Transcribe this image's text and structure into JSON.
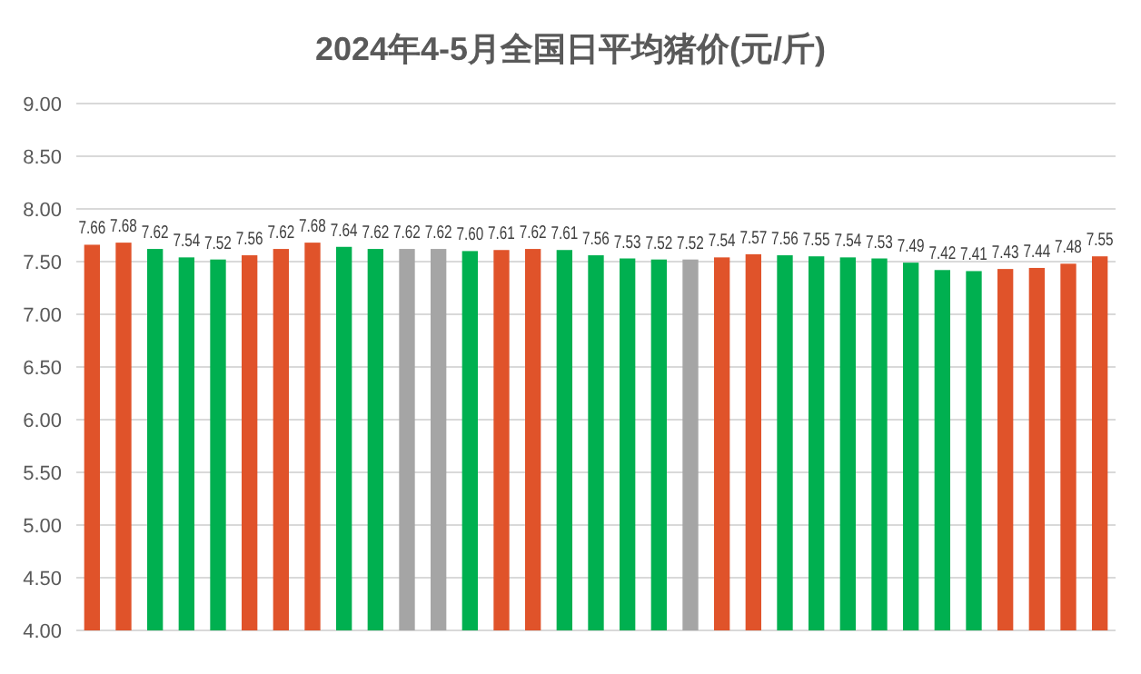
{
  "chart_data": {
    "type": "bar",
    "title": "2024年4-5月全国日平均猪价(元/斤)",
    "categories": [
      null,
      null,
      null,
      null,
      null,
      null,
      null,
      null,
      null,
      null,
      null,
      null,
      null,
      null,
      null,
      null,
      null,
      null,
      null,
      null,
      null,
      null,
      null,
      null,
      null,
      null,
      null,
      null,
      null,
      null,
      null,
      null,
      null
    ],
    "values": [
      7.66,
      7.68,
      7.62,
      7.54,
      7.52,
      7.56,
      7.62,
      7.68,
      7.64,
      7.62,
      7.62,
      7.62,
      7.6,
      7.61,
      7.62,
      7.61,
      7.56,
      7.53,
      7.52,
      7.52,
      7.54,
      7.57,
      7.56,
      7.55,
      7.54,
      7.53,
      7.49,
      7.42,
      7.41,
      7.43,
      7.44,
      7.48,
      7.55
    ],
    "colors": [
      "#e0532a",
      "#e0532a",
      "#00b050",
      "#00b050",
      "#00b050",
      "#e0532a",
      "#e0532a",
      "#e0532a",
      "#00b050",
      "#00b050",
      "#a5a5a5",
      "#a5a5a5",
      "#00b050",
      "#e0532a",
      "#e0532a",
      "#00b050",
      "#00b050",
      "#00b050",
      "#00b050",
      "#a5a5a5",
      "#e0532a",
      "#e0532a",
      "#00b050",
      "#00b050",
      "#00b050",
      "#00b050",
      "#00b050",
      "#00b050",
      "#00b050",
      "#e0532a",
      "#e0532a",
      "#e0532a",
      "#e0532a"
    ],
    "ylim": [
      4,
      9
    ],
    "yticks": [
      {
        "value": 4,
        "label": "4.00"
      },
      {
        "value": 4.5,
        "label": "4.50"
      },
      {
        "value": 5,
        "label": "5.00"
      },
      {
        "value": 5.5,
        "label": "5.50"
      },
      {
        "value": 6,
        "label": "6.00"
      },
      {
        "value": 6.5,
        "label": "6.50"
      },
      {
        "value": 7,
        "label": "7.00"
      },
      {
        "value": 7.5,
        "label": "7.50"
      },
      {
        "value": 8,
        "label": "8.00"
      },
      {
        "value": 8.5,
        "label": "8.50"
      },
      {
        "value": 9,
        "label": "9.00"
      }
    ],
    "value_labels": [
      "7.66",
      "7.68",
      "7.62",
      "7.54",
      "7.52",
      "7.56",
      "7.62",
      "7.68",
      "7.64",
      "7.62",
      "7.62",
      "7.62",
      "7.60",
      "7.61",
      "7.62",
      "7.61",
      "7.56",
      "7.53",
      "7.52",
      "7.52",
      "7.54",
      "7.57",
      "7.56",
      "7.55",
      "7.54",
      "7.53",
      "7.49",
      "7.42",
      "7.41",
      "7.43",
      "7.44",
      "7.48",
      "7.55"
    ],
    "grid": "y"
  }
}
